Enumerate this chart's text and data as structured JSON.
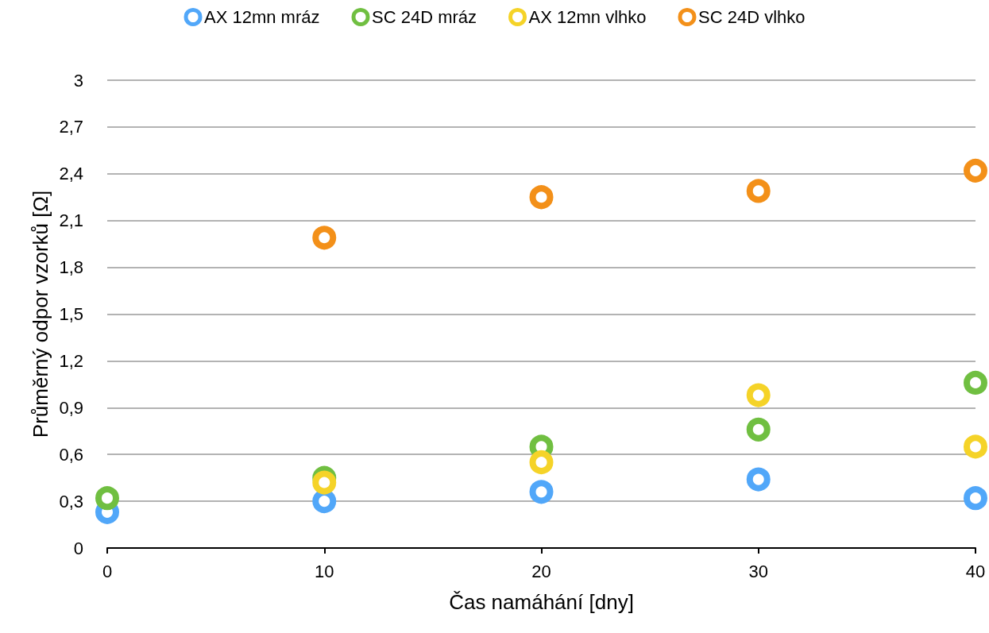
{
  "chart_data": {
    "type": "scatter",
    "xlabel": "Čas namáhání [dny]",
    "ylabel": "Průměrný odpor vzorků [Ω]",
    "x": [
      0,
      10,
      20,
      30,
      40
    ],
    "series": [
      {
        "name": "AX 12mn mráz",
        "color": "#51a7f9",
        "values": [
          0.23,
          0.3,
          0.36,
          0.44,
          0.32
        ]
      },
      {
        "name": "SC 24D mráz",
        "color": "#70bf41",
        "values": [
          0.32,
          0.45,
          0.65,
          0.76,
          1.06
        ]
      },
      {
        "name": "AX 12mn vlhko",
        "color": "#f5d328",
        "values": [
          null,
          0.42,
          0.55,
          0.98,
          0.65
        ]
      },
      {
        "name": "SC 24D vlhko",
        "color": "#f39019",
        "values": [
          null,
          1.99,
          2.25,
          2.29,
          2.42
        ]
      }
    ],
    "xlim": [
      0,
      40
    ],
    "xticks": [
      0,
      10,
      20,
      30,
      40
    ],
    "ylim": [
      0,
      3
    ],
    "yticks": [
      0,
      {
        "value": 0.3,
        "label": "0,3"
      },
      {
        "value": 0.6,
        "label": "0,6"
      },
      {
        "value": 0.9,
        "label": "0,9"
      },
      {
        "value": 1.2,
        "label": "1,2"
      },
      {
        "value": 1.5,
        "label": "1,5"
      },
      {
        "value": 1.8,
        "label": "1,8"
      },
      {
        "value": 2.1,
        "label": "2,1"
      },
      {
        "value": 2.4,
        "label": "2,4"
      },
      {
        "value": 2.7,
        "label": "2,7"
      },
      3
    ],
    "grid": "y",
    "legend": "top",
    "marker": "circle"
  }
}
